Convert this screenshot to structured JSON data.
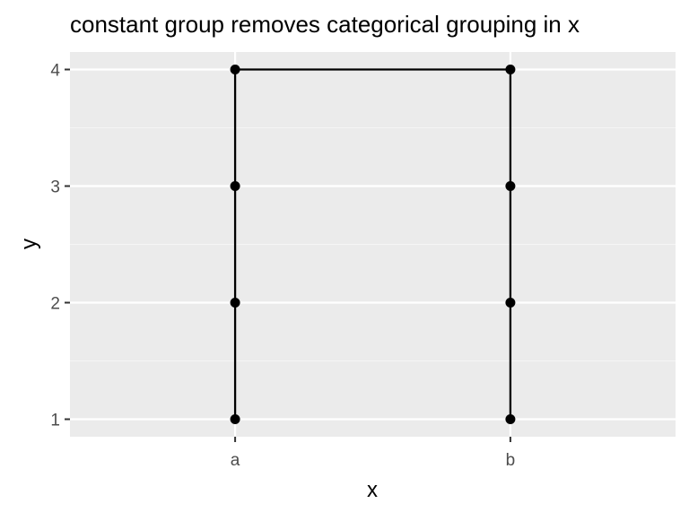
{
  "chart_data": {
    "type": "line",
    "title": "constant group removes categorical grouping in x",
    "xlabel": "x",
    "ylabel": "y",
    "x_scale": "categorical",
    "x_categories": [
      "a",
      "b"
    ],
    "y_ticks": [
      1,
      2,
      3,
      4
    ],
    "ylim": [
      0.85,
      4.15
    ],
    "grid": true,
    "legend": "none",
    "colors": {
      "panel_background": "#ebebeb",
      "grid_major": "#ffffff",
      "grid_minor": "#f5f5f5",
      "line": "#000000",
      "point": "#000000",
      "tick_label": "#4d4d4d",
      "tick_mark": "#333333"
    },
    "series": [
      {
        "points": [
          {
            "x": "a",
            "y": 1
          },
          {
            "x": "a",
            "y": 2
          },
          {
            "x": "a",
            "y": 3
          },
          {
            "x": "a",
            "y": 4
          },
          {
            "x": "b",
            "y": 4
          },
          {
            "x": "b",
            "y": 3
          },
          {
            "x": "b",
            "y": 2
          },
          {
            "x": "b",
            "y": 1
          }
        ]
      }
    ]
  }
}
